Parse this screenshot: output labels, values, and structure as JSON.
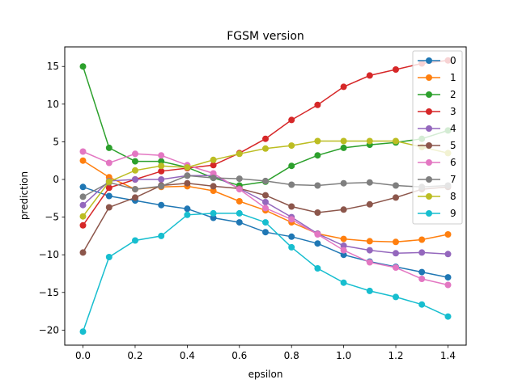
{
  "chart_data": {
    "type": "line",
    "title": "FGSM version",
    "xlabel": "epsilon",
    "ylabel": "prediction",
    "xlim": [
      -0.07,
      1.47
    ],
    "ylim": [
      -22,
      17.6
    ],
    "xticks": [
      0.0,
      0.2,
      0.4,
      0.6,
      0.8,
      1.0,
      1.2,
      1.4
    ],
    "xtick_labels": [
      "0.0",
      "0.2",
      "0.4",
      "0.6",
      "0.8",
      "1.0",
      "1.2",
      "1.4"
    ],
    "yticks": [
      -20,
      -15,
      -10,
      -5,
      0,
      5,
      10,
      15
    ],
    "ytick_labels": [
      "−20",
      "−15",
      "−10",
      "−5",
      "0",
      "5",
      "10",
      "15"
    ],
    "grid": false,
    "legend_position": "top-right",
    "x": [
      0.0,
      0.1,
      0.2,
      0.3,
      0.4,
      0.5,
      0.6,
      0.7,
      0.8,
      0.9,
      1.0,
      1.1,
      1.2,
      1.3,
      1.4
    ],
    "series": [
      {
        "name": "0",
        "color": "#1f77b4",
        "values": [
          -1.0,
          -2.2,
          -2.8,
          -3.4,
          -3.9,
          -5.1,
          -5.7,
          -7.0,
          -7.6,
          -8.5,
          -10.0,
          -10.9,
          -11.6,
          -12.3,
          -13.0
        ]
      },
      {
        "name": "1",
        "color": "#ff7f0e",
        "values": [
          2.5,
          0.3,
          -1.3,
          -1.0,
          -0.9,
          -1.5,
          -2.9,
          -4.1,
          -5.7,
          -7.2,
          -7.9,
          -8.2,
          -8.3,
          -8.0,
          -7.3
        ]
      },
      {
        "name": "2",
        "color": "#2ca02c",
        "values": [
          15.0,
          4.2,
          2.4,
          2.4,
          1.6,
          0.2,
          -0.8,
          -0.3,
          1.8,
          3.2,
          4.2,
          4.6,
          4.9,
          5.4,
          6.5
        ]
      },
      {
        "name": "3",
        "color": "#d62728",
        "values": [
          -6.1,
          -1.1,
          0.0,
          1.1,
          1.5,
          1.9,
          3.5,
          5.4,
          7.9,
          9.9,
          12.3,
          13.8,
          14.6,
          15.4,
          15.8
        ]
      },
      {
        "name": "4",
        "color": "#9467bd",
        "values": [
          -3.4,
          -0.2,
          0.0,
          0.0,
          0.5,
          0.5,
          -1.2,
          -3.0,
          -5.0,
          -7.2,
          -8.8,
          -9.4,
          -9.8,
          -9.7,
          -9.9
        ]
      },
      {
        "name": "5",
        "color": "#8c564b",
        "values": [
          -9.7,
          -3.7,
          -2.4,
          -0.8,
          -0.5,
          -0.9,
          -1.2,
          -2.1,
          -3.6,
          -4.4,
          -4.0,
          -3.3,
          -2.4,
          -1.3,
          -1.0
        ]
      },
      {
        "name": "6",
        "color": "#e377c2",
        "values": [
          3.7,
          2.2,
          3.4,
          3.2,
          1.9,
          0.8,
          -1.3,
          -3.8,
          -5.3,
          -7.3,
          -9.4,
          -11.0,
          -11.7,
          -13.2,
          -14.0
        ]
      },
      {
        "name": "7",
        "color": "#7f7f7f",
        "values": [
          -2.3,
          -0.4,
          -1.3,
          -0.9,
          0.5,
          0.2,
          0.1,
          -0.2,
          -0.7,
          -0.8,
          -0.5,
          -0.4,
          -0.8,
          -1.0,
          -0.8
        ]
      },
      {
        "name": "8",
        "color": "#bcbd22",
        "values": [
          -4.9,
          -0.3,
          1.2,
          1.8,
          1.6,
          2.6,
          3.4,
          4.1,
          4.5,
          5.1,
          5.1,
          5.1,
          5.1,
          4.3,
          3.5
        ]
      },
      {
        "name": "9",
        "color": "#17becf",
        "values": [
          -20.2,
          -10.3,
          -8.1,
          -7.5,
          -4.7,
          -4.5,
          -4.5,
          -5.7,
          -9.0,
          -11.8,
          -13.7,
          -14.8,
          -15.6,
          -16.6,
          -18.2
        ]
      }
    ]
  }
}
